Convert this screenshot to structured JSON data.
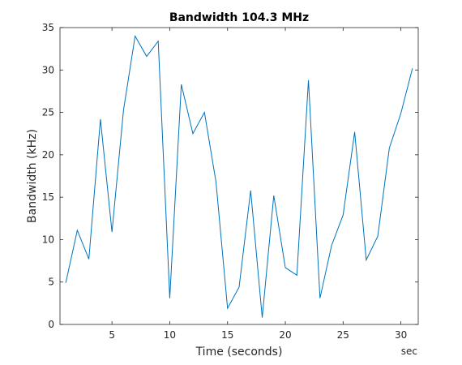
{
  "chart_data": {
    "type": "line",
    "title": "Bandwidth 104.3 MHz",
    "xlabel": "Time (seconds)",
    "ylabel": "Bandwidth (kHz)",
    "x_unit_label": "sec",
    "xlim": [
      0.5,
      31.5
    ],
    "ylim": [
      0,
      35
    ],
    "x_ticks": [
      5,
      10,
      15,
      20,
      25,
      30
    ],
    "y_ticks": [
      0,
      5,
      10,
      15,
      20,
      25,
      30,
      35
    ],
    "grid": false,
    "series": [
      {
        "color": "#0072bd",
        "x": [
          1,
          2,
          3,
          4,
          5,
          6,
          7,
          8,
          9,
          10,
          11,
          12,
          13,
          14,
          15,
          16,
          17,
          18,
          19,
          20,
          21,
          22,
          23,
          24,
          25,
          26,
          27,
          28,
          29,
          30,
          31
        ],
        "y": [
          4.9,
          11.1,
          7.7,
          24.2,
          10.9,
          25.3,
          34.0,
          31.6,
          33.4,
          3.1,
          28.3,
          22.5,
          25.0,
          16.8,
          1.9,
          4.4,
          15.8,
          0.8,
          15.2,
          6.7,
          5.8,
          28.8,
          3.1,
          9.3,
          12.9,
          22.7,
          7.6,
          10.4,
          20.8,
          24.9,
          30.2
        ]
      }
    ]
  }
}
